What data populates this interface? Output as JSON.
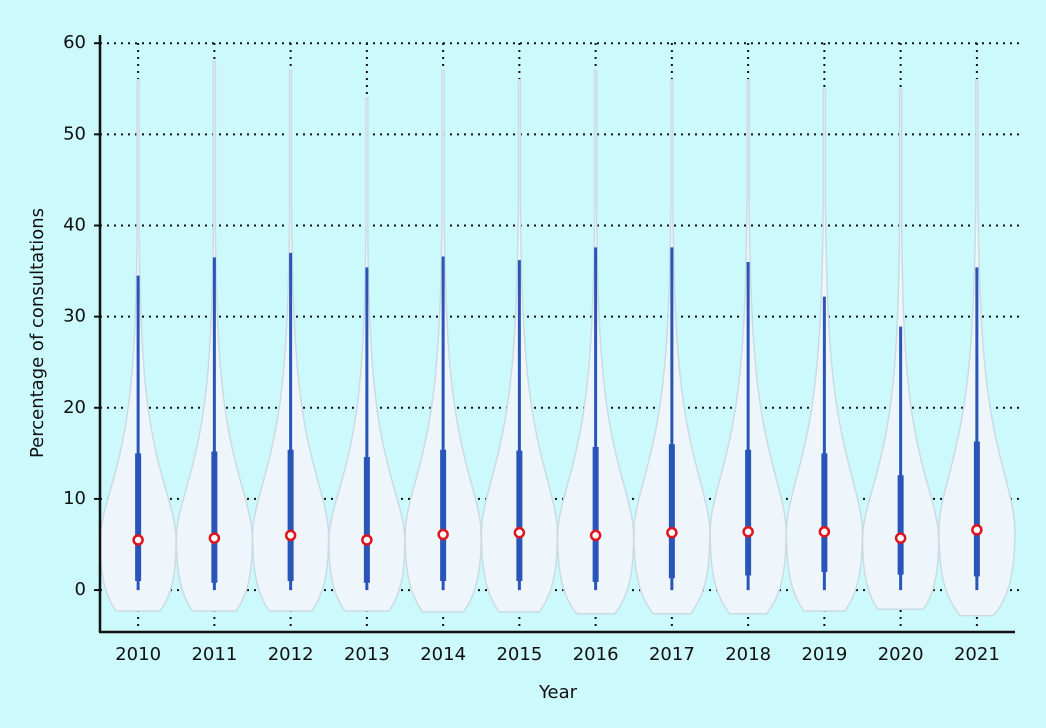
{
  "chart_data": {
    "type": "violin",
    "x_label": "Year",
    "y_label": "Percentage of consultations",
    "categories": [
      "2010",
      "2011",
      "2012",
      "2013",
      "2014",
      "2015",
      "2016",
      "2017",
      "2018",
      "2019",
      "2020",
      "2021"
    ],
    "median": [
      5.5,
      5.7,
      6.0,
      5.5,
      6.1,
      6.3,
      6.0,
      6.3,
      6.4,
      6.4,
      5.7,
      6.6
    ],
    "q1": [
      1.0,
      0.8,
      1.0,
      0.8,
      1.0,
      1.0,
      0.9,
      1.3,
      1.6,
      2.0,
      1.7,
      1.5
    ],
    "q3": [
      15.0,
      15.2,
      15.4,
      14.6,
      15.4,
      15.3,
      15.7,
      16.0,
      15.4,
      15.0,
      12.6,
      16.3
    ],
    "whisker_low": [
      0,
      0,
      0,
      0,
      0,
      0,
      0,
      0,
      0,
      0,
      0,
      0
    ],
    "whisker_high": [
      34.5,
      36.5,
      37.0,
      35.4,
      36.6,
      36.2,
      37.6,
      37.6,
      36.0,
      32.2,
      28.9,
      35.4
    ],
    "min": [
      -2.3,
      -2.3,
      -2.3,
      -2.3,
      -2.4,
      -2.4,
      -2.6,
      -2.6,
      -2.6,
      -2.3,
      -2.1,
      -2.8
    ],
    "max": [
      56,
      58,
      57,
      54,
      57,
      56,
      57,
      56,
      56,
      55,
      55,
      56
    ],
    "violin_color": "#eef6fb",
    "box_color": "#2a55b8",
    "median_color": "#e0141e",
    "ylim": [
      -4.6,
      60.9
    ],
    "yticks": [
      0,
      10,
      20,
      30,
      40,
      50,
      60
    ],
    "grid": true
  }
}
